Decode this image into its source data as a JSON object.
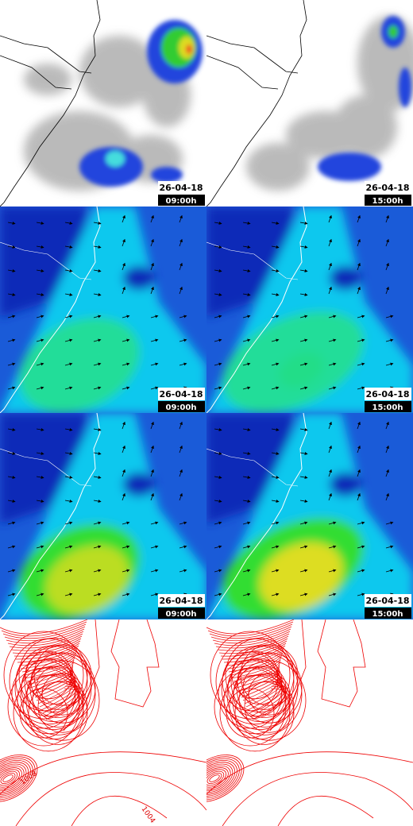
{
  "panels": [
    {
      "date": "26-04-18",
      "time": "09:00h"
    },
    {
      "date": "26-04-18",
      "time": "15:00h"
    },
    {
      "date": "26-04-18",
      "time": "09:00h"
    },
    {
      "date": "26-04-18",
      "time": "15:00h"
    },
    {
      "date": "26-04-18",
      "time": "09:00h"
    },
    {
      "date": "26-04-18",
      "time": "15:00h"
    }
  ],
  "isobar_labels": [
    "1008",
    "1004"
  ]
}
